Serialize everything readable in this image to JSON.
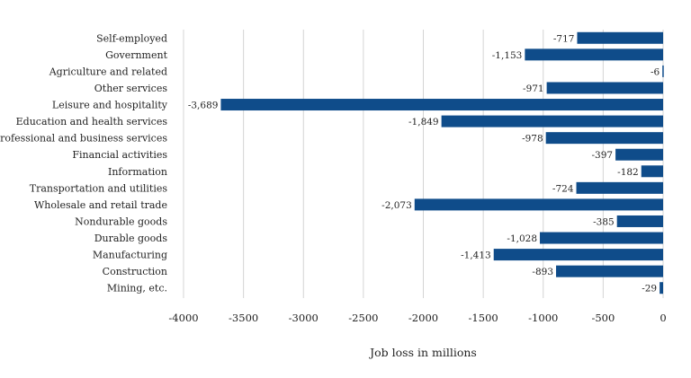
{
  "chart_data": {
    "type": "bar",
    "orientation": "horizontal",
    "categories": [
      "Self-employed",
      "Government",
      "Agriculture and related",
      "Other services",
      "Leisure and hospitality",
      "Education and health services",
      "Professional and business services",
      "Financial activities",
      "Information",
      "Transportation and utilities",
      "Wholesale and retail trade",
      "Nondurable goods",
      "Durable goods",
      "Manufacturing",
      "Construction",
      "Mining, etc."
    ],
    "values": [
      -717,
      -1153,
      -6,
      -971,
      -3689,
      -1849,
      -978,
      -397,
      -182,
      -724,
      -2073,
      -385,
      -1028,
      -1413,
      -893,
      -29
    ],
    "data_labels": [
      "-717",
      "-1,153",
      "-6",
      "-971",
      "-3,689",
      "-1,849",
      "-978",
      "-397",
      "-182",
      "-724",
      "-2,073",
      "-385",
      "-1,028",
      "-1,413",
      "-893",
      "-29"
    ],
    "xlabel": "Job loss in millions",
    "xlim": [
      -4000,
      0
    ],
    "xticks": [
      -4000,
      -3500,
      -3000,
      -2500,
      -2000,
      -1500,
      -1000,
      -500,
      0
    ],
    "xtick_labels": [
      "-4000",
      "-3500",
      "-3000",
      "-2500",
      "-2000",
      "-1500",
      "-1000",
      "-500",
      "0"
    ],
    "grid": true,
    "bar_color": "#0f4c8a"
  }
}
